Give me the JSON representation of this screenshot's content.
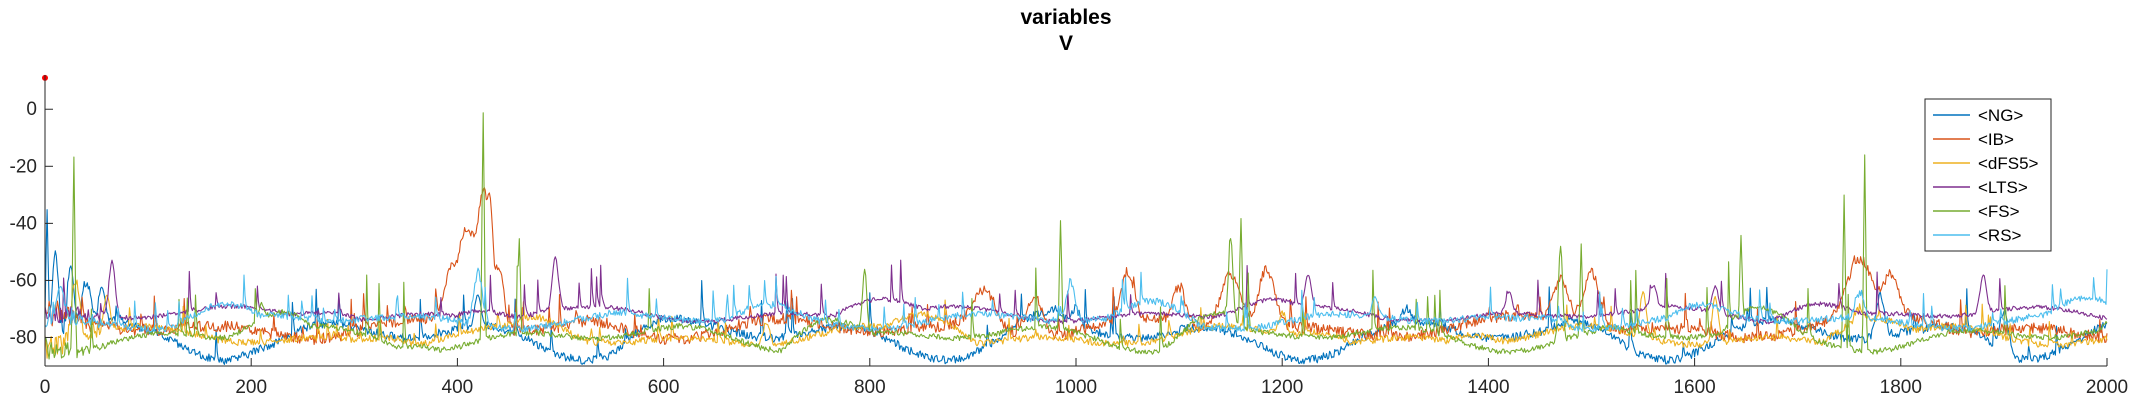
{
  "chart_data": {
    "type": "line",
    "title": "variables",
    "subtitle": "V",
    "xlabel": "",
    "ylabel": "",
    "xlim": [
      0,
      2000
    ],
    "ylim": [
      -90,
      12
    ],
    "xticks": [
      0,
      200,
      400,
      600,
      800,
      1000,
      1200,
      1400,
      1600,
      1800,
      2000
    ],
    "yticks": [
      0,
      -20,
      -40,
      -60,
      -80
    ],
    "grid": false,
    "legend_position": "top-right",
    "series": [
      {
        "name": "<NG>",
        "color": "#0072BD",
        "baseline": -80,
        "drift": 8,
        "noise": 1.5,
        "spike_rate": 0.02,
        "spike_amp": 10,
        "rebound": 4,
        "peaks": [
          [
            2,
            -35,
            1
          ],
          [
            10,
            -50,
            3
          ],
          [
            25,
            -55,
            3
          ],
          [
            40,
            -60,
            4
          ],
          [
            55,
            -62,
            3
          ],
          [
            420,
            -65,
            3
          ],
          [
            980,
            -70,
            4
          ],
          [
            1000,
            -70,
            4
          ],
          [
            1320,
            -70,
            4
          ],
          [
            1780,
            -65,
            4
          ],
          [
            1900,
            -70,
            4
          ]
        ]
      },
      {
        "name": "<IB>",
        "color": "#D95319",
        "baseline": -77,
        "drift": 4,
        "noise": 2,
        "spike_rate": 0.03,
        "spike_amp": 8,
        "rebound": 3,
        "peaks": [
          [
            410,
            -45,
            12
          ],
          [
            425,
            -28,
            5
          ],
          [
            432,
            -22,
            3
          ],
          [
            405,
            -40,
            5
          ],
          [
            395,
            -55,
            6
          ],
          [
            440,
            -55,
            5
          ],
          [
            910,
            -63,
            10
          ],
          [
            960,
            -66,
            8
          ],
          [
            1050,
            -57,
            6
          ],
          [
            1100,
            -62,
            6
          ],
          [
            1150,
            -58,
            10
          ],
          [
            1185,
            -56,
            8
          ],
          [
            1470,
            -60,
            8
          ],
          [
            1500,
            -57,
            8
          ],
          [
            1760,
            -52,
            12
          ],
          [
            1790,
            -58,
            8
          ]
        ]
      },
      {
        "name": "<dFS5>",
        "color": "#EDB120",
        "baseline": -80,
        "drift": 4,
        "noise": 1.2,
        "spike_rate": 0.03,
        "spike_amp": 6,
        "rebound": 8,
        "peaks": [
          [
            30,
            -60,
            4
          ],
          [
            60,
            -65,
            3
          ],
          [
            700,
            -75,
            3
          ],
          [
            1200,
            -72,
            4
          ],
          [
            1550,
            -64,
            3
          ],
          [
            1620,
            -66,
            3
          ],
          [
            1760,
            -70,
            4
          ]
        ]
      },
      {
        "name": "<LTS>",
        "color": "#7E2F8E",
        "baseline": -72,
        "drift": 3,
        "noise": 0.8,
        "spike_rate": 0.015,
        "spike_amp": 10,
        "rebound": 6,
        "peaks": [
          [
            65,
            -53,
            3
          ],
          [
            495,
            -52,
            3
          ],
          [
            1225,
            -58,
            3
          ],
          [
            1420,
            -64,
            3
          ],
          [
            1560,
            -62,
            3
          ],
          [
            1620,
            -62,
            3
          ],
          [
            1880,
            -58,
            3
          ]
        ]
      },
      {
        "name": "<FS>",
        "color": "#77AC30",
        "baseline": -80,
        "drift": 5,
        "noise": 1,
        "spike_rate": 0.01,
        "spike_amp": 15,
        "rebound": 10,
        "peaks": [
          [
            28,
            -17,
            1
          ],
          [
            210,
            -68,
            2
          ],
          [
            425,
            -1,
            1
          ],
          [
            460,
            -45,
            1
          ],
          [
            795,
            -56,
            2
          ],
          [
            985,
            -39,
            1
          ],
          [
            1150,
            -45,
            2
          ],
          [
            1160,
            -38,
            1
          ],
          [
            1470,
            -48,
            2
          ],
          [
            1490,
            -47,
            1
          ],
          [
            1645,
            -44,
            1
          ],
          [
            1745,
            -30,
            1
          ],
          [
            1765,
            -16,
            1
          ]
        ]
      },
      {
        "name": "<RS>",
        "color": "#4DBEEE",
        "baseline": -74,
        "drift": 3,
        "noise": 1.2,
        "spike_rate": 0.04,
        "spike_amp": 8,
        "rebound": 6,
        "peaks": [
          [
            15,
            -62,
            3
          ],
          [
            420,
            -57,
            4
          ],
          [
            995,
            -60,
            4
          ],
          [
            1290,
            -66,
            3
          ],
          [
            1760,
            -64,
            4
          ]
        ]
      }
    ],
    "annotations": [
      {
        "x": 0,
        "y": 11,
        "marker": "dot",
        "color": "#ff0000"
      }
    ]
  }
}
